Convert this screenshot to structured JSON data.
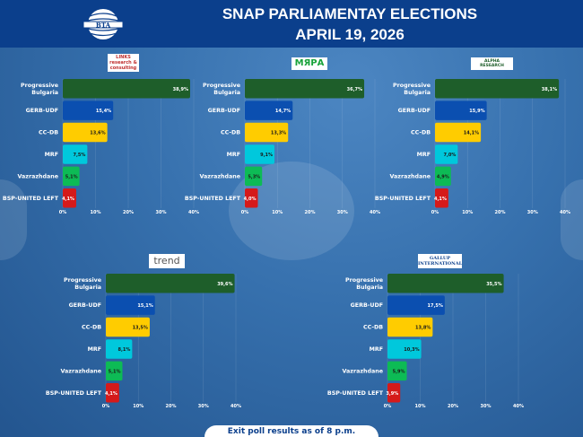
{
  "header": {
    "title_line1": "SNAP PARLIAMENTAY ELECTIONS",
    "title_line2": "APRIL 19, 2026",
    "logo_text": "БТА"
  },
  "footer": {
    "note": "Exit poll results as of 8 p.m."
  },
  "colors": {
    "Progressive Bulgaria": "#1e5e2a",
    "GERB-UDF": "#0b4fb0",
    "CC-DB": "#ffcc00",
    "MRF": "#00c8dc",
    "Vazrazhdane": "#0dbb55",
    "BSP-UNITED LEFT": "#d51a1a"
  },
  "chart_data": [
    {
      "type": "bar",
      "orientation": "horizontal",
      "pollster": "LINKS research & consulting",
      "categories": [
        "Progressive Bulgaria",
        "GERB-UDF",
        "CC-DB",
        "MRF",
        "Vazrazhdane",
        "BSP-UNITED LEFT"
      ],
      "values": [
        38.9,
        15.4,
        13.6,
        7.5,
        5.1,
        4.1
      ],
      "value_labels": [
        "38,9%",
        "15,4%",
        "13,6%",
        "7,5%",
        "5,1%",
        "4,1%"
      ],
      "xticks": [
        "0%",
        "10%",
        "20%",
        "30%",
        "40%"
      ],
      "xlim": [
        0,
        40
      ]
    },
    {
      "type": "bar",
      "orientation": "horizontal",
      "pollster": "МЯРА",
      "categories": [
        "Progressive Bulgaria",
        "GERB-UDF",
        "CC-DB",
        "MRF",
        "Vazrazhdane",
        "BSP-UNITED LEFT"
      ],
      "values": [
        36.7,
        14.7,
        13.3,
        9.1,
        5.3,
        4.0
      ],
      "value_labels": [
        "36,7%",
        "14,7%",
        "13,3%",
        "9,1%",
        "5,3%",
        "4,0%"
      ],
      "xticks": [
        "0%",
        "10%",
        "20%",
        "30%",
        "40%"
      ],
      "xlim": [
        0,
        40
      ]
    },
    {
      "type": "bar",
      "orientation": "horizontal",
      "pollster": "ALPHA RESEARCH",
      "categories": [
        "Progressive Bulgaria",
        "GERB-UDF",
        "CC-DB",
        "MRF",
        "Vazrazhdane",
        "BSP-UNITED LEFT"
      ],
      "values": [
        38.1,
        15.9,
        14.1,
        7.0,
        4.9,
        4.1
      ],
      "value_labels": [
        "38,1%",
        "15,9%",
        "14,1%",
        "7,0%",
        "4,9%",
        "4,1%"
      ],
      "xticks": [
        "0%",
        "10%",
        "20%",
        "30%",
        "40%"
      ],
      "xlim": [
        0,
        40
      ]
    },
    {
      "type": "bar",
      "orientation": "horizontal",
      "pollster": "trend",
      "categories": [
        "Progressive Bulgaria",
        "GERB-UDF",
        "CC-DB",
        "MRF",
        "Vazrazhdane",
        "BSP-UNITED LEFT"
      ],
      "values": [
        39.6,
        15.1,
        13.5,
        8.1,
        5.1,
        4.1
      ],
      "value_labels": [
        "39,6%",
        "15,1%",
        "13,5%",
        "8,1%",
        "5,1%",
        "4,1%"
      ],
      "xticks": [
        "0%",
        "10%",
        "20%",
        "30%",
        "40%"
      ],
      "xlim": [
        0,
        40
      ]
    },
    {
      "type": "bar",
      "orientation": "horizontal",
      "pollster": "GALLUP INTERNATIONAL",
      "categories": [
        "Progressive Bulgaria",
        "GERB-UDF",
        "CC-DB",
        "MRF",
        "Vazrazhdane",
        "BSP-UNITED LEFT"
      ],
      "values": [
        35.5,
        17.5,
        13.8,
        10.3,
        5.9,
        3.9
      ],
      "value_labels": [
        "35,5%",
        "17,5%",
        "13,8%",
        "10,3%",
        "5,9%",
        "3,9%"
      ],
      "xticks": [
        "0%",
        "10%",
        "20%",
        "30%",
        "40%"
      ],
      "xlim": [
        0,
        40
      ]
    }
  ]
}
